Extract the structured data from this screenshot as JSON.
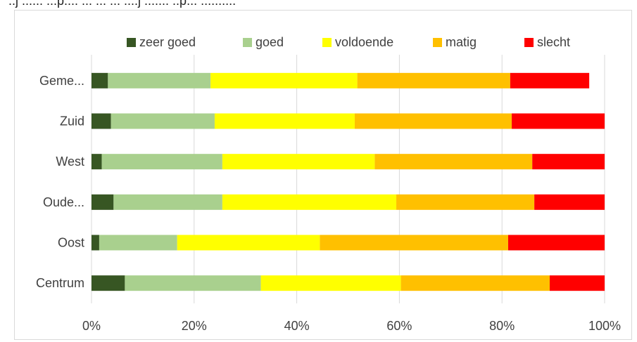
{
  "header": {
    "cut_text": "..j ...... ...p.... ... ... ... ....j ....... ..p... .........."
  },
  "chart_data": {
    "type": "bar",
    "orientation": "horizontal",
    "stacked": "percent",
    "categories": [
      "Centrum",
      "Oost",
      "Oude...",
      "West",
      "Zuid",
      "Geme..."
    ],
    "series": [
      {
        "name": "zeer goed",
        "color": "#375623",
        "values": [
          6.5,
          1.5,
          4.3,
          2.0,
          3.8,
          3.2
        ]
      },
      {
        "name": "goed",
        "color": "#a9d08e",
        "values": [
          26.5,
          15.2,
          21.2,
          23.5,
          20.2,
          20.0
        ]
      },
      {
        "name": "voldoende",
        "color": "#ffff00",
        "values": [
          27.3,
          27.8,
          33.9,
          29.7,
          27.3,
          28.6
        ]
      },
      {
        "name": "matig",
        "color": "#ffc000",
        "values": [
          29.0,
          36.7,
          26.9,
          30.7,
          30.6,
          29.8
        ]
      },
      {
        "name": "slecht",
        "color": "#ff0000",
        "values": [
          10.7,
          18.8,
          13.7,
          14.1,
          18.1,
          15.4
        ]
      }
    ],
    "xlim": [
      0,
      100
    ],
    "xticks": [
      "0%",
      "20%",
      "40%",
      "60%",
      "80%",
      "100%"
    ],
    "grid": "vertical",
    "legend": "top"
  }
}
